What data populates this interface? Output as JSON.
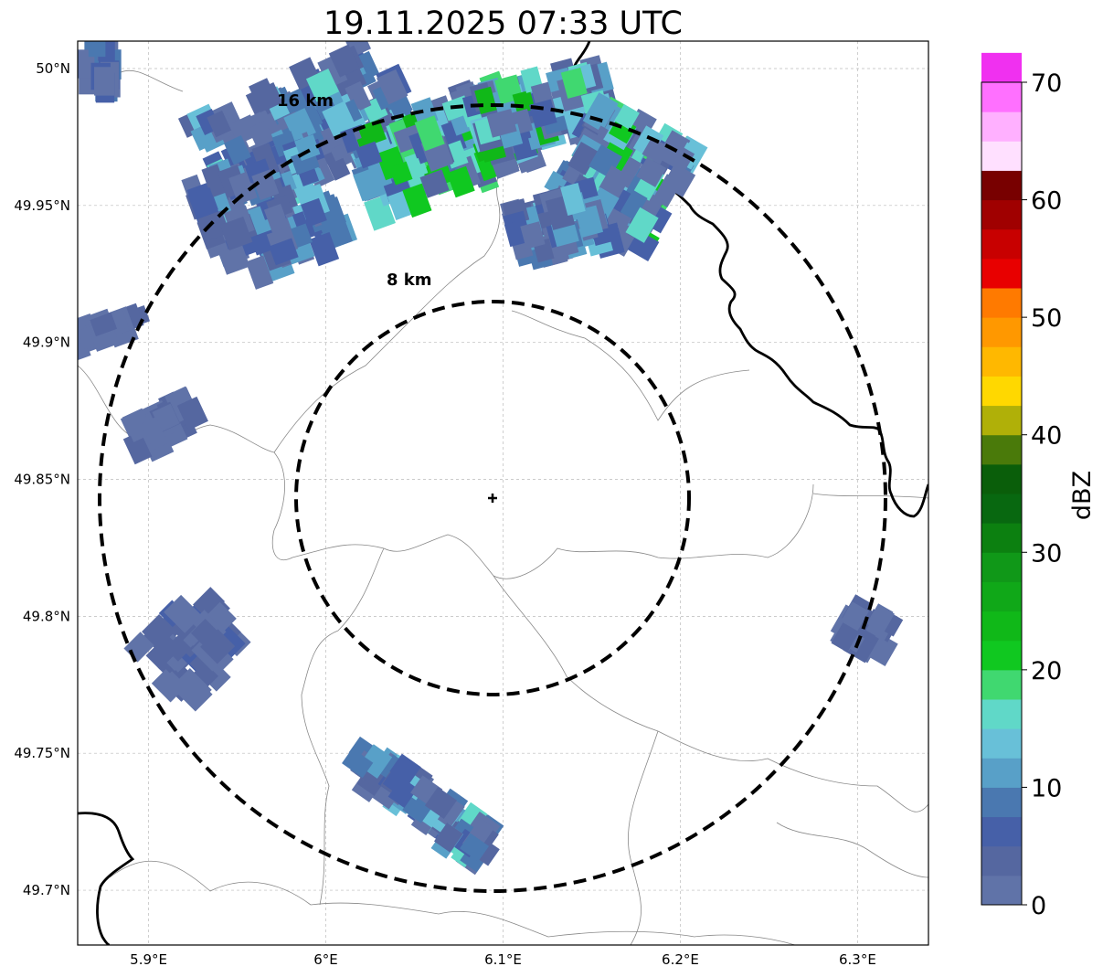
{
  "title": "19.11.2025 07:33 UTC",
  "map": {
    "center": {
      "lon": 6.095,
      "lat": 49.843
    },
    "lon_range": [
      5.86,
      6.34
    ],
    "lat_range": [
      49.68,
      50.01
    ],
    "x_ticks": [
      {
        "value": 5.9,
        "label": "5.9°E"
      },
      {
        "value": 6.0,
        "label": "6°E"
      },
      {
        "value": 6.1,
        "label": "6.1°E"
      },
      {
        "value": 6.2,
        "label": "6.2°E"
      },
      {
        "value": 6.3,
        "label": "6.3°E"
      }
    ],
    "y_ticks": [
      {
        "value": 50.0,
        "label": "50°N"
      },
      {
        "value": 49.95,
        "label": "49.95°N"
      },
      {
        "value": 49.9,
        "label": "49.9°N"
      },
      {
        "value": 49.85,
        "label": "49.85°N"
      },
      {
        "value": 49.8,
        "label": "49.8°N"
      },
      {
        "value": 49.75,
        "label": "49.75°N"
      },
      {
        "value": 49.7,
        "label": "49.7°N"
      }
    ],
    "rings": [
      {
        "radius_km": 8,
        "label": "8 km"
      },
      {
        "radius_km": 16,
        "label": "16 km"
      }
    ],
    "marker": "radar-site-cross",
    "borders": "country border black, regional borders grey",
    "grid": true
  },
  "colorbar": {
    "label": "dBZ",
    "min": 0,
    "max": 70,
    "step": 2.5,
    "ticks": [
      "0",
      "10",
      "20",
      "30",
      "40",
      "50",
      "60",
      "70"
    ],
    "colors": [
      "#6073a8",
      "#5567a0",
      "#4660a8",
      "#4a78b0",
      "#58a0c8",
      "#68c0d8",
      "#60d8c8",
      "#40d870",
      "#10c820",
      "#10b818",
      "#10a818",
      "#109818",
      "#0c8010",
      "#086810",
      "#0a5e0a",
      "#4a7a0a",
      "#b0b008",
      "#ffd800",
      "#ffb800",
      "#ff9800",
      "#ff7a00",
      "#e80000",
      "#c80000",
      "#a00000",
      "#780000",
      "#ffe0ff",
      "#ffb0ff",
      "#ff70ff",
      "#f030f0"
    ]
  }
}
